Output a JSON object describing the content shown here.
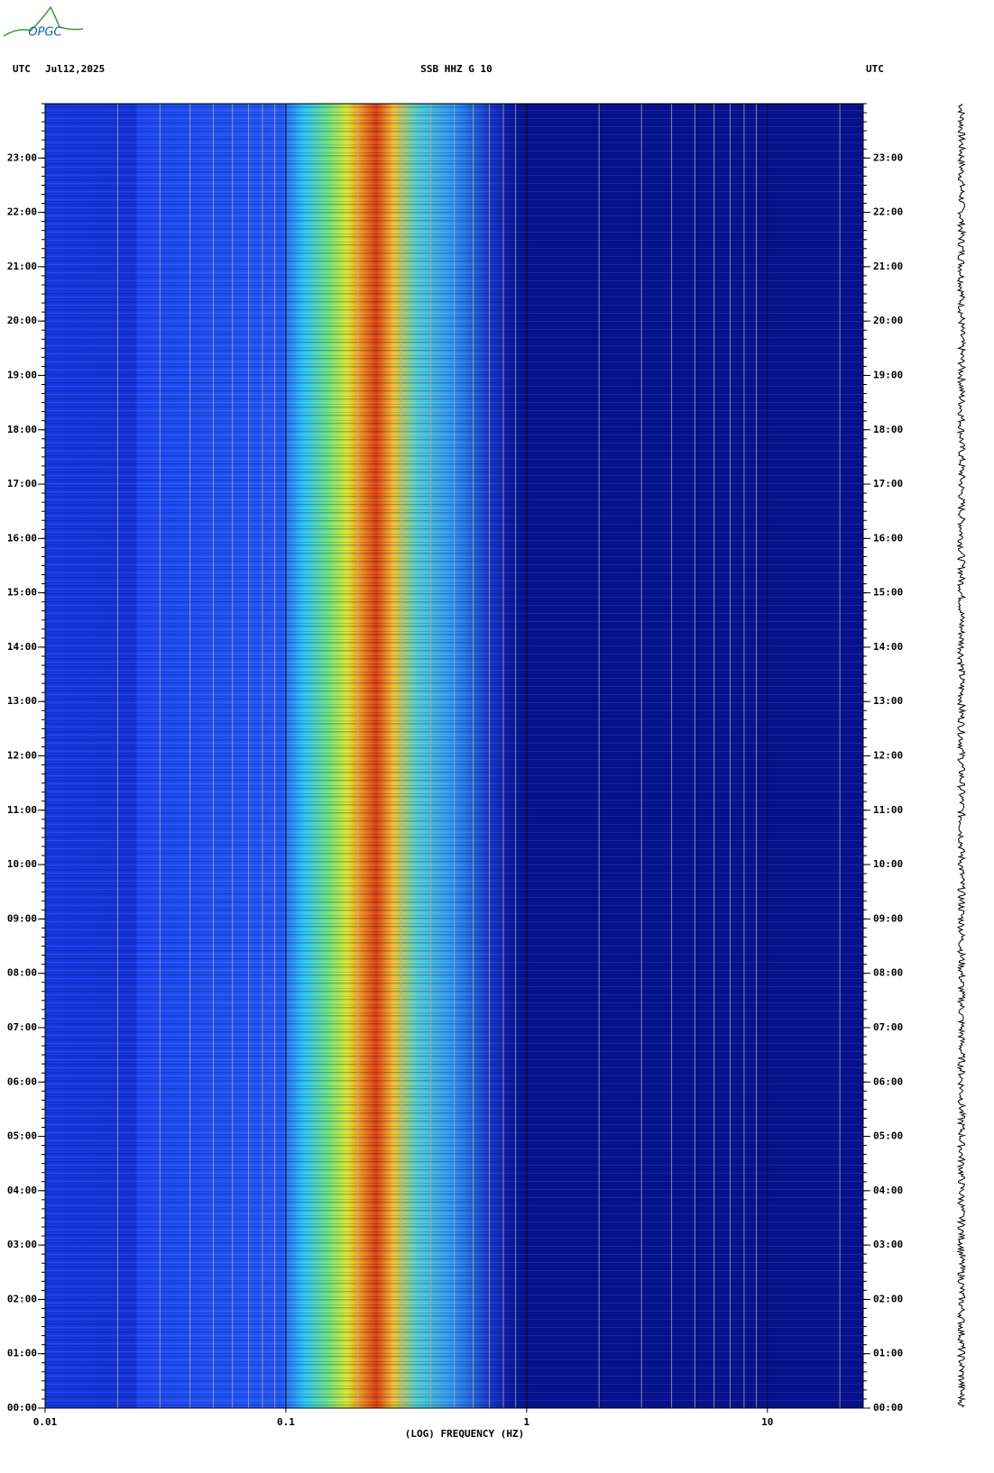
{
  "chart_data": {
    "type": "spectrogram",
    "logo": "OPGC",
    "time_zone": "UTC",
    "date": "Jul12,2025",
    "title": "SSB HHZ G 10",
    "x_label": "(LOG) FREQUENCY (HZ)",
    "x_scale": "log",
    "xlim": [
      0.01,
      25
    ],
    "xticks": [
      0.01,
      0.1,
      1,
      10
    ],
    "xminorticks": [
      0.02,
      0.03,
      0.04,
      0.05,
      0.06,
      0.07,
      0.08,
      0.09,
      0.2,
      0.3,
      0.4,
      0.5,
      0.6,
      0.7,
      0.8,
      0.9,
      2,
      3,
      4,
      5,
      6,
      7,
      8,
      9,
      20
    ],
    "ylim": [
      0,
      24
    ],
    "yticks": [
      {
        "value": 0,
        "label": "00:00"
      },
      {
        "value": 1,
        "label": "01:00"
      },
      {
        "value": 2,
        "label": "02:00"
      },
      {
        "value": 3,
        "label": "03:00"
      },
      {
        "value": 4,
        "label": "04:00"
      },
      {
        "value": 5,
        "label": "05:00"
      },
      {
        "value": 6,
        "label": "06:00"
      },
      {
        "value": 7,
        "label": "07:00"
      },
      {
        "value": 8,
        "label": "08:00"
      },
      {
        "value": 9,
        "label": "09:00"
      },
      {
        "value": 10,
        "label": "10:00"
      },
      {
        "value": 11,
        "label": "11:00"
      },
      {
        "value": 12,
        "label": "12:00"
      },
      {
        "value": 13,
        "label": "13:00"
      },
      {
        "value": 14,
        "label": "14:00"
      },
      {
        "value": 15,
        "label": "15:00"
      },
      {
        "value": 16,
        "label": "16:00"
      },
      {
        "value": 17,
        "label": "17:00"
      },
      {
        "value": 18,
        "label": "18:00"
      },
      {
        "value": 19,
        "label": "19:00"
      },
      {
        "value": 20,
        "label": "20:00"
      },
      {
        "value": 21,
        "label": "21:00"
      },
      {
        "value": 22,
        "label": "22:00"
      },
      {
        "value": 23,
        "label": "23:00"
      }
    ],
    "grid": true
  }
}
